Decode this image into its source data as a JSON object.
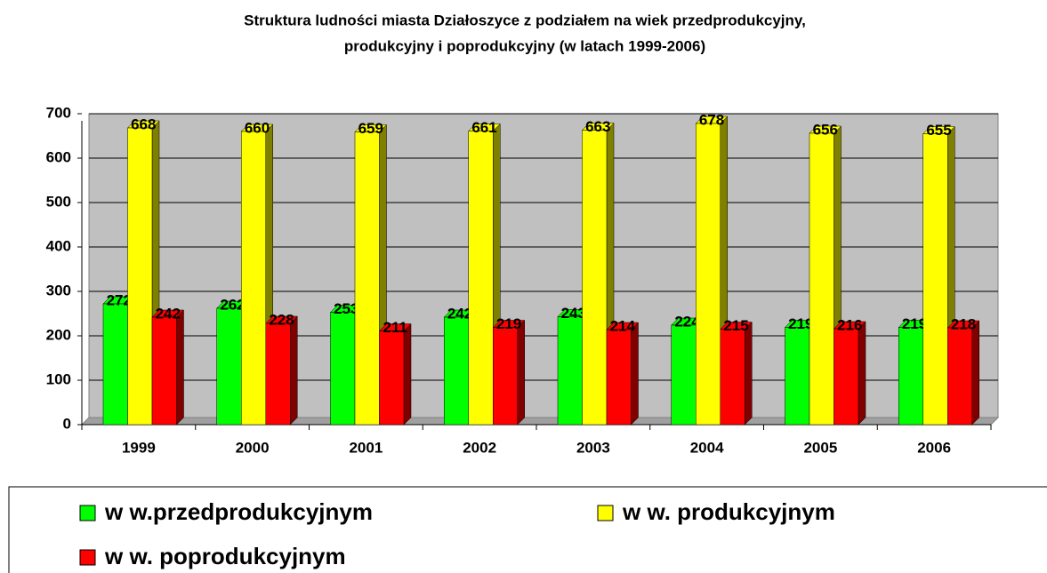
{
  "chart_data": {
    "type": "bar3d",
    "title": [
      "Struktura ludności miasta Działoszyce z podziałem na wiek przedprodukcyjny,",
      "produkcyjny i poprodukcyjny (w latach 1999-2006)"
    ],
    "categories": [
      "1999",
      "2000",
      "2001",
      "2002",
      "2003",
      "2004",
      "2005",
      "2006"
    ],
    "series": [
      {
        "name": "w w.przedprodukcyjnym",
        "color": "#00ff00",
        "side_color": "#008000",
        "values": [
          272,
          262,
          253,
          242,
          243,
          224,
          219,
          219
        ]
      },
      {
        "name": "w w. produkcyjnym",
        "color": "#ffff00",
        "side_color": "#808000",
        "values": [
          668,
          660,
          659,
          661,
          663,
          678,
          656,
          655
        ]
      },
      {
        "name": "w w. poprodukcyjnym",
        "color": "#ff0000",
        "side_color": "#800000",
        "values": [
          242,
          228,
          211,
          219,
          214,
          215,
          216,
          218
        ]
      }
    ],
    "ylim": [
      0,
      700
    ],
    "yticks": [
      0,
      100,
      200,
      300,
      400,
      500,
      600,
      700
    ],
    "grid": true,
    "legend": "bottom"
  }
}
